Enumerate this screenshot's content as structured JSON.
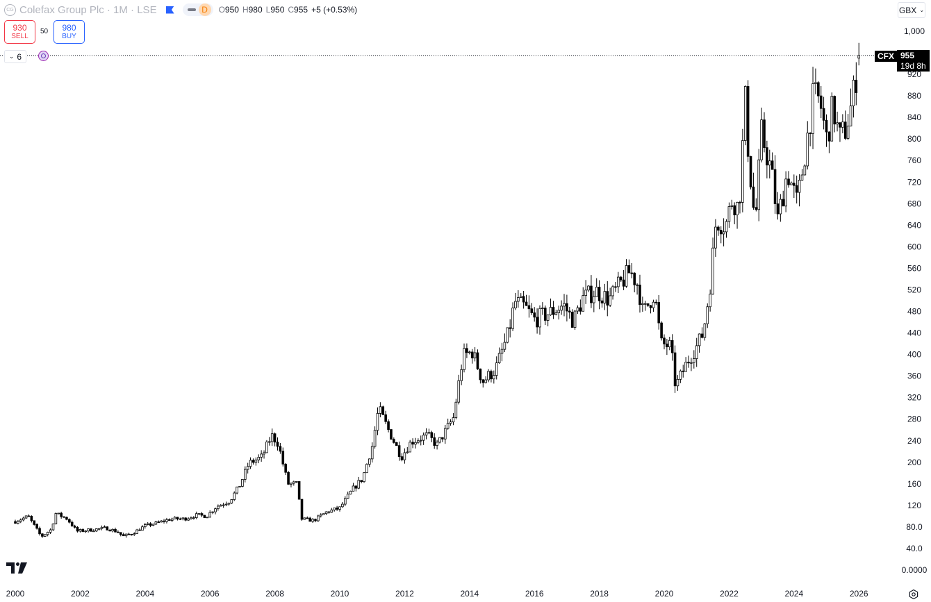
{
  "header": {
    "logo_text": "CG",
    "title": "Colefax Group Plc · 1M · LSE",
    "market_status": "D",
    "ohlc": {
      "o_label": "O",
      "o": "950",
      "h_label": "H",
      "h": "980",
      "l_label": "L",
      "l": "950",
      "c_label": "C",
      "c": "955",
      "change": "+5 (+0.53%)"
    }
  },
  "trade": {
    "sell_price": "930",
    "sell_label": "SELL",
    "spread": "50",
    "buy_price": "980",
    "buy_label": "BUY"
  },
  "indicators": {
    "count": "6"
  },
  "currency": {
    "label": "GBX"
  },
  "price_tag": {
    "symbol": "CFX",
    "price": "955",
    "countdown": "19d 8h"
  },
  "colors": {
    "candle_up_fill": "#ffffff",
    "candle_down_fill": "#000000",
    "candle_outline": "#000000",
    "sell": "#f23645",
    "buy": "#2962ff"
  },
  "chart_data": {
    "type": "candlestick",
    "title": "Colefax Group Plc · 1M · LSE",
    "interval": "1M",
    "currency": "GBX",
    "ylim": [
      0,
      1000
    ],
    "xlim": [
      "2000-01",
      "2026-02"
    ],
    "y_ticks": [
      "0.0000",
      "40.0",
      "80.0",
      "120",
      "160",
      "200",
      "240",
      "280",
      "320",
      "360",
      "400",
      "440",
      "480",
      "520",
      "560",
      "600",
      "640",
      "680",
      "720",
      "760",
      "800",
      "840",
      "880",
      "920",
      "1,000"
    ],
    "x_ticks": [
      "2000",
      "2002",
      "2004",
      "2006",
      "2008",
      "2010",
      "2012",
      "2014",
      "2016",
      "2018",
      "2020",
      "2022",
      "2024",
      "2026"
    ],
    "grid": false,
    "last_price": 955,
    "anchors": [
      [
        2000.0,
        90
      ],
      [
        2000.4,
        100
      ],
      [
        2000.8,
        62
      ],
      [
        2001.1,
        75
      ],
      [
        2001.25,
        105
      ],
      [
        2001.6,
        95
      ],
      [
        2001.9,
        72
      ],
      [
        2002.4,
        75
      ],
      [
        2002.8,
        78
      ],
      [
        2003.2,
        70
      ],
      [
        2003.3,
        62
      ],
      [
        2003.6,
        68
      ],
      [
        2004.0,
        82
      ],
      [
        2004.4,
        88
      ],
      [
        2004.8,
        95
      ],
      [
        2005.2,
        95
      ],
      [
        2005.6,
        102
      ],
      [
        2005.9,
        100
      ],
      [
        2006.2,
        118
      ],
      [
        2006.6,
        128
      ],
      [
        2006.9,
        155
      ],
      [
        2007.2,
        198
      ],
      [
        2007.6,
        210
      ],
      [
        2007.9,
        250
      ],
      [
        2008.1,
        235
      ],
      [
        2008.4,
        160
      ],
      [
        2008.7,
        160
      ],
      [
        2008.8,
        95
      ],
      [
        2009.2,
        92
      ],
      [
        2009.6,
        108
      ],
      [
        2010.0,
        115
      ],
      [
        2010.4,
        150
      ],
      [
        2010.7,
        170
      ],
      [
        2011.0,
        230
      ],
      [
        2011.2,
        300
      ],
      [
        2011.5,
        260
      ],
      [
        2011.9,
        210
      ],
      [
        2012.2,
        238
      ],
      [
        2012.7,
        250
      ],
      [
        2013.0,
        232
      ],
      [
        2013.5,
        282
      ],
      [
        2013.8,
        398
      ],
      [
        2014.1,
        405
      ],
      [
        2014.4,
        350
      ],
      [
        2014.8,
        372
      ],
      [
        2015.2,
        440
      ],
      [
        2015.4,
        498
      ],
      [
        2015.7,
        488
      ],
      [
        2016.0,
        465
      ],
      [
        2016.5,
        478
      ],
      [
        2016.9,
        492
      ],
      [
        2017.2,
        462
      ],
      [
        2017.5,
        505
      ],
      [
        2017.9,
        518
      ],
      [
        2018.3,
        502
      ],
      [
        2018.7,
        535
      ],
      [
        2018.95,
        555
      ],
      [
        2019.2,
        528
      ],
      [
        2019.35,
        475
      ],
      [
        2019.7,
        515
      ],
      [
        2019.9,
        420
      ],
      [
        2020.2,
        415
      ],
      [
        2020.35,
        340
      ],
      [
        2020.7,
        385
      ],
      [
        2021.0,
        415
      ],
      [
        2021.2,
        440
      ],
      [
        2021.4,
        520
      ],
      [
        2021.6,
        650
      ],
      [
        2021.9,
        640
      ],
      [
        2022.1,
        690
      ],
      [
        2022.3,
        670
      ],
      [
        2022.5,
        870
      ],
      [
        2022.6,
        770
      ],
      [
        2022.8,
        640
      ],
      [
        2023.0,
        810
      ],
      [
        2023.3,
        740
      ],
      [
        2023.5,
        650
      ],
      [
        2023.8,
        740
      ],
      [
        2024.1,
        680
      ],
      [
        2024.4,
        800
      ],
      [
        2024.6,
        880
      ],
      [
        2024.8,
        870
      ],
      [
        2025.0,
        800
      ],
      [
        2025.2,
        860
      ],
      [
        2025.4,
        800
      ],
      [
        2025.6,
        820
      ],
      [
        2025.8,
        870
      ],
      [
        2025.95,
        930
      ],
      [
        2026.05,
        955
      ]
    ]
  }
}
